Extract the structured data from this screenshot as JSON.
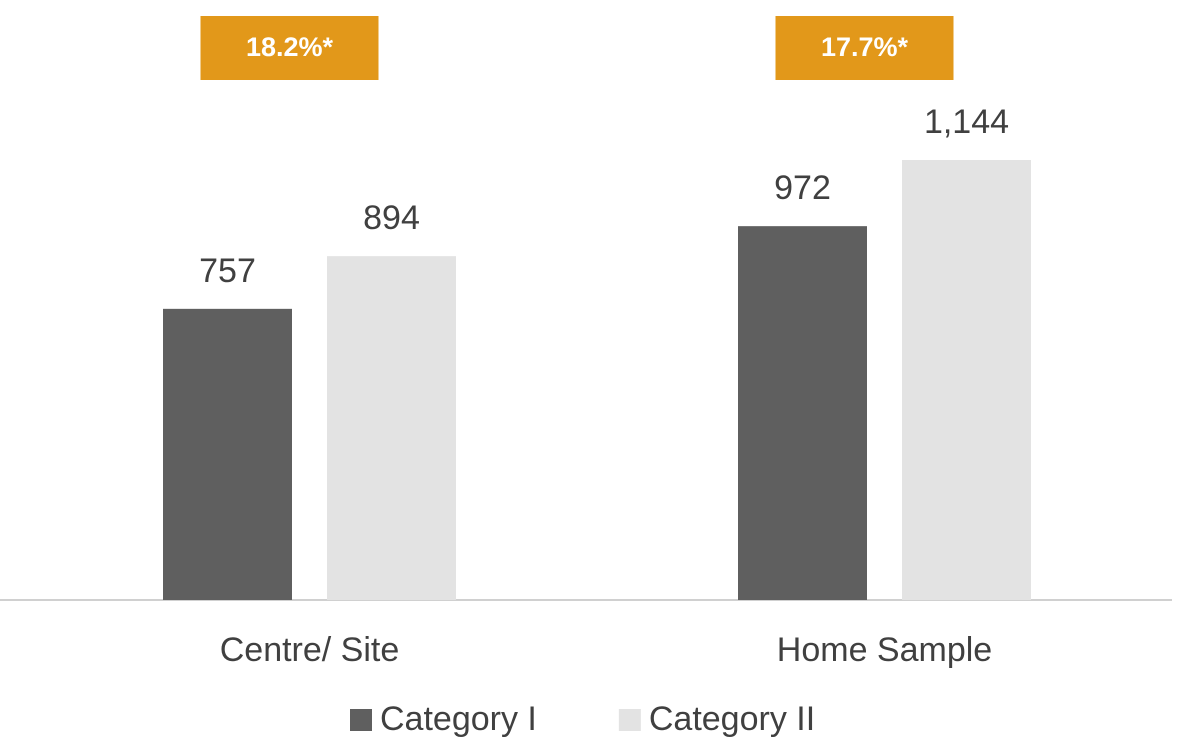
{
  "chart_data": {
    "type": "bar",
    "categories": [
      "Centre/ Site",
      "Home Sample"
    ],
    "series": [
      {
        "name": "Category I",
        "color": "#5f5f5f",
        "values": [
          757,
          972
        ]
      },
      {
        "name": "Category II",
        "color": "#e3e3e3",
        "values": [
          894,
          1144
        ],
        "value_labels": [
          "894",
          "1,144"
        ]
      }
    ],
    "annotations": [
      "18.2%*",
      "17.7%*"
    ],
    "annotation_color": "#e2981a",
    "ylim": [
      0,
      1560
    ],
    "legend": "bottom"
  }
}
